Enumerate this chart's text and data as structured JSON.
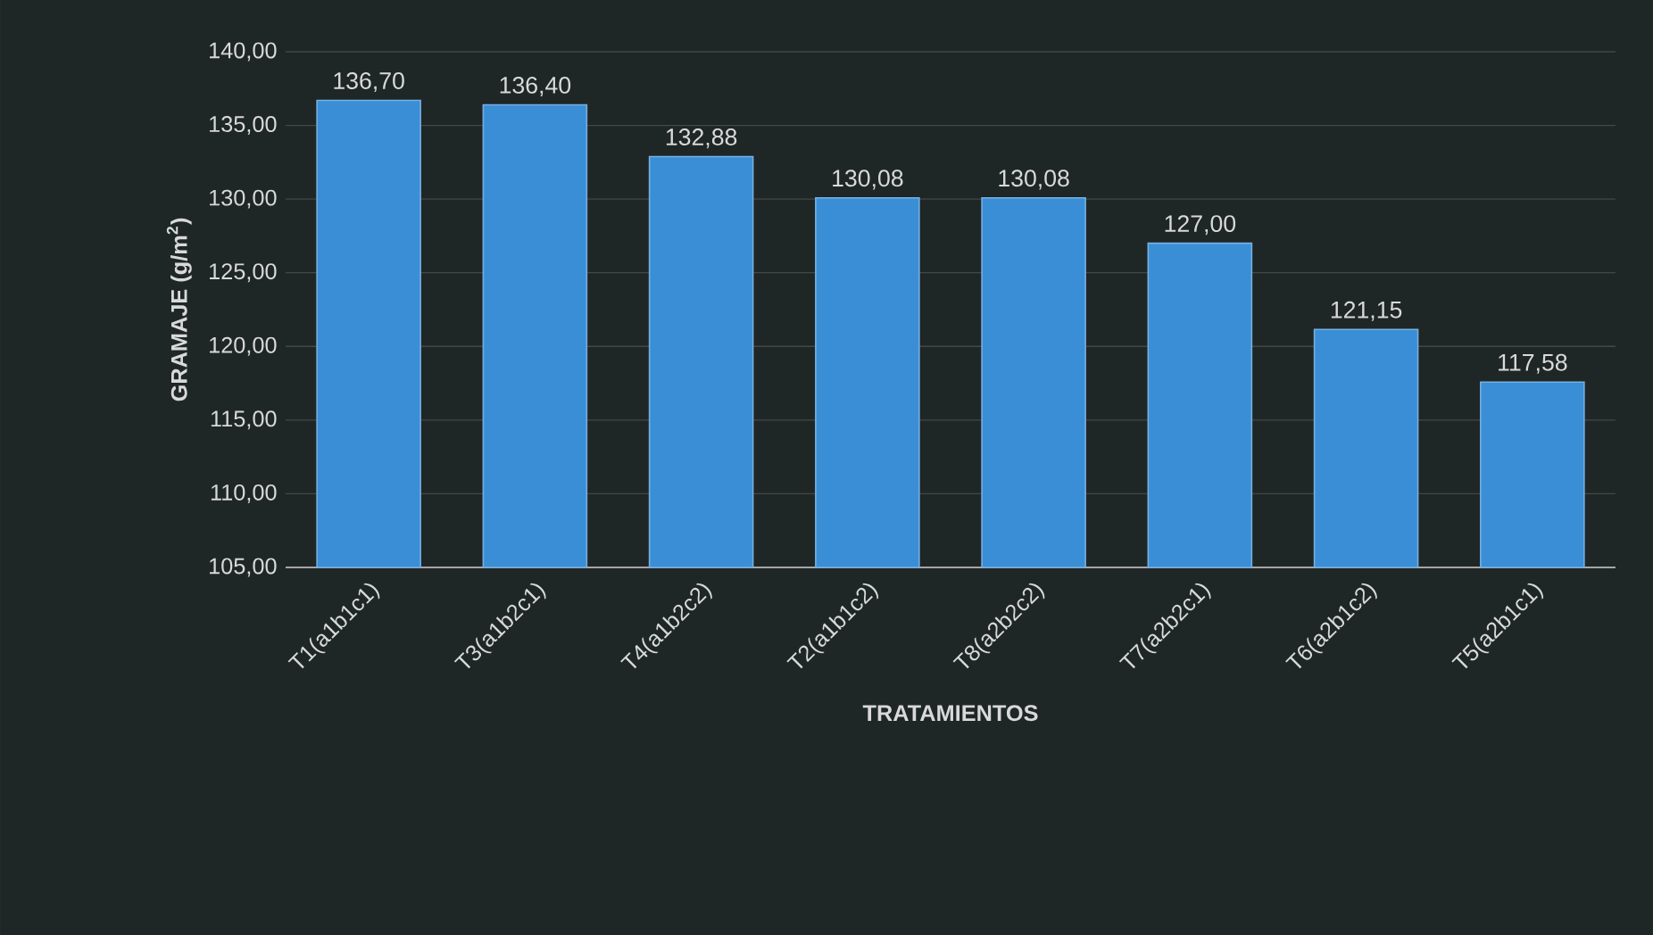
{
  "chart_data": {
    "type": "bar",
    "xlabel": "TRATAMIENTOS",
    "ylabel": "GRAMAJE (g/m$^{2}$)",
    "categories": [
      "T1(a1b1c1)",
      "T3(a1b2c1)",
      "T4(a1b2c2)",
      "T2(a1b1c2)",
      "T8(a2b2c2)",
      "T7(a2b2c1)",
      "T6(a2b1c2)",
      "T5(a2b1c1)"
    ],
    "values": [
      136.7,
      136.4,
      132.88,
      130.08,
      130.08,
      127.0,
      121.15,
      117.58
    ],
    "value_labels": [
      "136,70",
      "136,40",
      "132,88",
      "130,08",
      "130,08",
      "127,00",
      "121,15",
      "117,58"
    ],
    "color": "#3a8ed6",
    "ylim": [
      105,
      140
    ],
    "yticks": [
      {
        "value": 105,
        "label": "105,00"
      },
      {
        "value": 110,
        "label": "110,00"
      },
      {
        "value": 115,
        "label": "115,00"
      },
      {
        "value": 120,
        "label": "120,00"
      },
      {
        "value": 125,
        "label": "125,00"
      },
      {
        "value": 130,
        "label": "130,00"
      },
      {
        "value": 135,
        "label": "135,00"
      },
      {
        "value": 140,
        "label": "140,00"
      }
    ],
    "grid": "y"
  }
}
